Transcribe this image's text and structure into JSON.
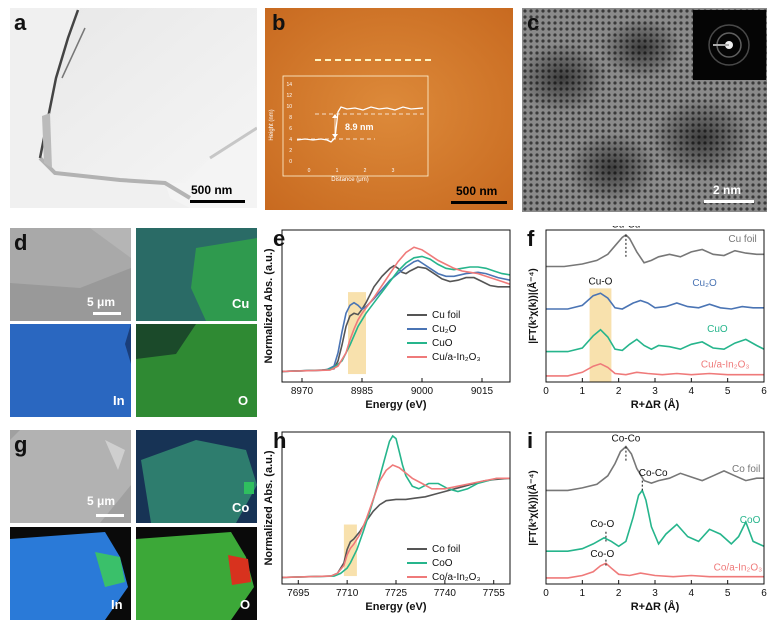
{
  "panels": {
    "a": {
      "label": "a",
      "scale": "500 nm"
    },
    "b": {
      "label": "b",
      "scale": "500 nm",
      "inset": {
        "ylabel": "Height (nm)",
        "xlabel": "Distance (μm)",
        "yticks": [
          "0",
          "2",
          "4",
          "6",
          "8",
          "10",
          "12",
          "14"
        ],
        "xticks": [
          "0",
          "1",
          "2",
          "3"
        ],
        "annotation": "8.9 nm"
      }
    },
    "c": {
      "label": "c",
      "scale": "2 nm"
    },
    "d": {
      "label": "d",
      "scale": "5 μm",
      "maps": [
        "Cu",
        "In",
        "O"
      ]
    },
    "g": {
      "label": "g",
      "scale": "5 μm",
      "maps": [
        "Co",
        "In",
        "O"
      ]
    },
    "e": {
      "label": "e"
    },
    "f": {
      "label": "f"
    },
    "h": {
      "label": "h"
    },
    "i": {
      "label": "i"
    }
  },
  "chart_data": [
    {
      "id": "e",
      "type": "line",
      "xlabel": "Energy (eV)",
      "ylabel": "Normalized Abs. (a.u.)",
      "xlim": [
        8965,
        9022
      ],
      "xticks": [
        "8970",
        "8985",
        "9000",
        "9015"
      ],
      "legend": "center-right",
      "series": [
        {
          "name": "Cu foil",
          "color": "#555555",
          "x": [
            8965,
            8975,
            8978,
            8979,
            8980,
            8981,
            8982,
            8983,
            8984,
            8985,
            8986,
            8987,
            8988,
            8990,
            8992,
            8993,
            8994,
            8995,
            8996,
            8997,
            8999,
            9001,
            9003,
            9005,
            9007,
            9009,
            9011,
            9013,
            9015,
            9017,
            9019,
            9022
          ],
          "y": [
            0.08,
            0.09,
            0.1,
            0.16,
            0.28,
            0.42,
            0.5,
            0.52,
            0.51,
            0.55,
            0.6,
            0.66,
            0.72,
            0.8,
            0.86,
            0.88,
            0.86,
            0.83,
            0.82,
            0.84,
            0.87,
            0.86,
            0.82,
            0.78,
            0.76,
            0.77,
            0.79,
            0.79,
            0.76,
            0.73,
            0.72,
            0.72
          ]
        },
        {
          "name": "Cu₂O",
          "color": "#4a74b4",
          "x": [
            8965,
            8976,
            8978,
            8979,
            8980,
            8981,
            8982,
            8983,
            8984,
            8985,
            8986,
            8988,
            8990,
            8992,
            8994,
            8996,
            8998,
            8999,
            9000,
            9002,
            9004,
            9006,
            9008,
            9011,
            9014,
            9016,
            9019,
            9022
          ],
          "y": [
            0.08,
            0.09,
            0.12,
            0.22,
            0.38,
            0.52,
            0.58,
            0.6,
            0.58,
            0.55,
            0.57,
            0.63,
            0.7,
            0.77,
            0.82,
            0.87,
            0.91,
            0.92,
            0.9,
            0.86,
            0.82,
            0.8,
            0.8,
            0.82,
            0.83,
            0.82,
            0.79,
            0.77
          ]
        },
        {
          "name": "CuO",
          "color": "#26b58c",
          "x": [
            8965,
            8976,
            8978,
            8980,
            8982,
            8984,
            8985,
            8986,
            8988,
            8990,
            8992,
            8994,
            8996,
            8998,
            9000,
            9002,
            9004,
            9006,
            9008,
            9010,
            9012,
            9014,
            9016,
            9018,
            9020,
            9022
          ],
          "y": [
            0.08,
            0.09,
            0.11,
            0.16,
            0.28,
            0.42,
            0.47,
            0.52,
            0.6,
            0.68,
            0.76,
            0.84,
            0.9,
            0.94,
            0.95,
            0.93,
            0.89,
            0.86,
            0.85,
            0.86,
            0.87,
            0.87,
            0.86,
            0.84,
            0.82,
            0.81
          ]
        },
        {
          "name": "Cu/a-In₂O₃",
          "color": "#ef7a7a",
          "x": [
            8965,
            8977,
            8979,
            8981,
            8982,
            8983,
            8984,
            8985,
            8986,
            8988,
            8990,
            8992,
            8994,
            8996,
            8998,
            9000,
            9002,
            9004,
            9006,
            9008,
            9010,
            9012,
            9014,
            9016,
            9018,
            9020,
            9022
          ],
          "y": [
            0.08,
            0.09,
            0.12,
            0.22,
            0.32,
            0.4,
            0.47,
            0.52,
            0.56,
            0.64,
            0.73,
            0.82,
            0.91,
            0.98,
            1.02,
            1.0,
            0.96,
            0.92,
            0.89,
            0.86,
            0.84,
            0.83,
            0.82,
            0.8,
            0.78,
            0.76,
            0.74
          ]
        }
      ]
    },
    {
      "id": "f",
      "type": "line",
      "xlabel": "R+ΔR (Å)",
      "ylabel": "|FT(k³χ(k))|(Å⁻⁴)",
      "xlim": [
        0,
        6
      ],
      "xticks": [
        "0",
        "1",
        "2",
        "3",
        "4",
        "5",
        "6"
      ],
      "series": [
        {
          "name": "Cu foil",
          "color": "#777777",
          "x": [
            0,
            0.5,
            1,
            1.4,
            1.7,
            1.9,
            2.1,
            2.2,
            2.3,
            2.5,
            2.7,
            2.9,
            3.1,
            3.4,
            3.7,
            4.0,
            4.3,
            4.6,
            4.9,
            5.2,
            5.5,
            5.8,
            6.0
          ],
          "y": [
            0.9,
            0.9,
            0.92,
            0.95,
            1.0,
            1.07,
            1.14,
            1.16,
            1.13,
            1.02,
            0.93,
            0.95,
            0.98,
            1.0,
            0.98,
            1.02,
            1.04,
            1.0,
            0.99,
            1.03,
            1.01,
            1.0,
            1.0
          ]
        },
        {
          "name": "Cu₂O",
          "color": "#4a74b4",
          "x": [
            0,
            0.6,
            1.0,
            1.3,
            1.5,
            1.7,
            1.9,
            2.1,
            2.4,
            2.6,
            2.8,
            3.0,
            3.3,
            3.6,
            3.9,
            4.2,
            4.5,
            4.8,
            5.1,
            5.4,
            5.7,
            6.0
          ],
          "y": [
            0.55,
            0.55,
            0.58,
            0.66,
            0.68,
            0.64,
            0.56,
            0.55,
            0.6,
            0.62,
            0.6,
            0.56,
            0.57,
            0.6,
            0.57,
            0.56,
            0.59,
            0.56,
            0.55,
            0.57,
            0.56,
            0.56
          ]
        },
        {
          "name": "CuO",
          "color": "#26b58c",
          "x": [
            0,
            0.6,
            1.0,
            1.3,
            1.5,
            1.7,
            1.9,
            2.1,
            2.3,
            2.5,
            2.7,
            2.9,
            3.1,
            3.4,
            3.7,
            4.0,
            4.3,
            4.6,
            4.9,
            5.2,
            5.5,
            5.8,
            6.0
          ],
          "y": [
            0.2,
            0.2,
            0.23,
            0.33,
            0.38,
            0.32,
            0.22,
            0.21,
            0.26,
            0.3,
            0.25,
            0.22,
            0.25,
            0.24,
            0.22,
            0.26,
            0.28,
            0.23,
            0.22,
            0.27,
            0.3,
            0.25,
            0.22
          ]
        },
        {
          "name": "Cu/a-In₂O₃",
          "color": "#ef7a7a",
          "x": [
            0,
            0.6,
            1.0,
            1.3,
            1.5,
            1.7,
            1.9,
            2.2,
            2.5,
            2.8,
            3.2,
            3.6,
            4.0,
            4.5,
            5.0,
            5.5,
            6.0
          ],
          "y": [
            0.0,
            0.0,
            0.03,
            0.08,
            0.1,
            0.07,
            0.02,
            0.01,
            0.03,
            0.02,
            0.01,
            0.02,
            0.01,
            0.02,
            0.01,
            0.01,
            0.01
          ]
        }
      ],
      "annotations": [
        "Cu-Cu",
        "Cu-O"
      ]
    },
    {
      "id": "h",
      "type": "line",
      "xlabel": "Energy (eV)",
      "ylabel": "Normalized Abs. (a.u.)",
      "xlim": [
        7690,
        7760
      ],
      "xticks": [
        "7695",
        "7710",
        "7725",
        "7740",
        "7755"
      ],
      "legend": "center-right",
      "series": [
        {
          "name": "Co foil",
          "color": "#555555",
          "x": [
            7690,
            7705,
            7707,
            7709,
            7710,
            7711,
            7712,
            7714,
            7716,
            7718,
            7720,
            7722,
            7725,
            7728,
            7731,
            7734,
            7737,
            7740,
            7743,
            7746,
            7749,
            7752,
            7755,
            7760
          ],
          "y": [
            0.05,
            0.06,
            0.08,
            0.16,
            0.26,
            0.32,
            0.34,
            0.4,
            0.48,
            0.55,
            0.6,
            0.63,
            0.64,
            0.64,
            0.65,
            0.66,
            0.68,
            0.7,
            0.72,
            0.74,
            0.76,
            0.78,
            0.79,
            0.8
          ]
        },
        {
          "name": "CoO",
          "color": "#26b58c",
          "x": [
            7690,
            7706,
            7708,
            7710,
            7711,
            7713,
            7715,
            7717,
            7719,
            7721,
            7723,
            7724,
            7725,
            7726,
            7727,
            7728,
            7730,
            7732,
            7735,
            7738,
            7741,
            7744,
            7747,
            7750,
            7753,
            7756,
            7760
          ],
          "y": [
            0.05,
            0.06,
            0.08,
            0.12,
            0.16,
            0.26,
            0.4,
            0.55,
            0.72,
            0.9,
            1.08,
            1.12,
            1.1,
            1.0,
            0.9,
            0.82,
            0.74,
            0.72,
            0.76,
            0.76,
            0.72,
            0.7,
            0.72,
            0.76,
            0.78,
            0.8,
            0.8
          ]
        },
        {
          "name": "Co/a-In₂O₃",
          "color": "#ef7a7a",
          "x": [
            7690,
            7705,
            7707,
            7709,
            7710,
            7711,
            7712,
            7714,
            7716,
            7718,
            7720,
            7722,
            7724,
            7726,
            7728,
            7730,
            7733,
            7736,
            7740,
            7744,
            7748,
            7752,
            7756,
            7760
          ],
          "y": [
            0.05,
            0.06,
            0.08,
            0.14,
            0.22,
            0.27,
            0.3,
            0.38,
            0.5,
            0.64,
            0.78,
            0.86,
            0.9,
            0.88,
            0.84,
            0.8,
            0.76,
            0.72,
            0.72,
            0.74,
            0.76,
            0.78,
            0.8,
            0.8
          ]
        }
      ]
    },
    {
      "id": "i",
      "type": "line",
      "xlabel": "R+ΔR (Å)",
      "ylabel": "|FT(k³χ(k))|(Å⁻⁴)",
      "xlim": [
        0,
        6
      ],
      "xticks": [
        "0",
        "1",
        "2",
        "3",
        "4",
        "5",
        "6"
      ],
      "series": [
        {
          "name": "Co foil",
          "color": "#777777",
          "x": [
            0,
            0.6,
            1.0,
            1.4,
            1.7,
            1.9,
            2.05,
            2.2,
            2.35,
            2.5,
            2.7,
            2.9,
            3.1,
            3.4,
            3.7,
            4.0,
            4.3,
            4.6,
            4.9,
            5.2,
            5.5,
            5.8,
            6.0
          ],
          "y": [
            0.72,
            0.72,
            0.74,
            0.77,
            0.84,
            0.94,
            1.04,
            1.08,
            1.02,
            0.9,
            0.8,
            0.78,
            0.8,
            0.82,
            0.86,
            0.83,
            0.8,
            0.84,
            0.88,
            0.84,
            0.8,
            0.82,
            0.82
          ]
        },
        {
          "name": "CoO",
          "color": "#26b58c",
          "x": [
            0,
            0.6,
            1.0,
            1.3,
            1.6,
            1.8,
            2.0,
            2.2,
            2.4,
            2.55,
            2.65,
            2.75,
            2.9,
            3.1,
            3.3,
            3.6,
            3.9,
            4.2,
            4.5,
            4.8,
            5.1,
            5.3,
            5.5,
            5.7,
            6.0
          ],
          "y": [
            0.22,
            0.22,
            0.24,
            0.28,
            0.33,
            0.3,
            0.26,
            0.3,
            0.5,
            0.68,
            0.72,
            0.64,
            0.42,
            0.28,
            0.36,
            0.44,
            0.34,
            0.3,
            0.4,
            0.36,
            0.28,
            0.34,
            0.46,
            0.3,
            0.26
          ]
        },
        {
          "name": "Co/a-In₂O₃",
          "color": "#ef7a7a",
          "x": [
            0,
            0.6,
            1.0,
            1.3,
            1.5,
            1.65,
            1.8,
            2.0,
            2.3,
            2.6,
            3.0,
            3.5,
            4.0,
            4.5,
            5.0,
            5.5,
            6.0
          ],
          "y": [
            0.0,
            0.0,
            0.02,
            0.05,
            0.1,
            0.12,
            0.08,
            0.03,
            0.02,
            0.04,
            0.02,
            0.01,
            0.02,
            0.01,
            0.01,
            0.01,
            0.01
          ]
        }
      ],
      "annotations": [
        "Co-Co",
        "Co-Co",
        "Co-O",
        "Co-O"
      ]
    }
  ]
}
